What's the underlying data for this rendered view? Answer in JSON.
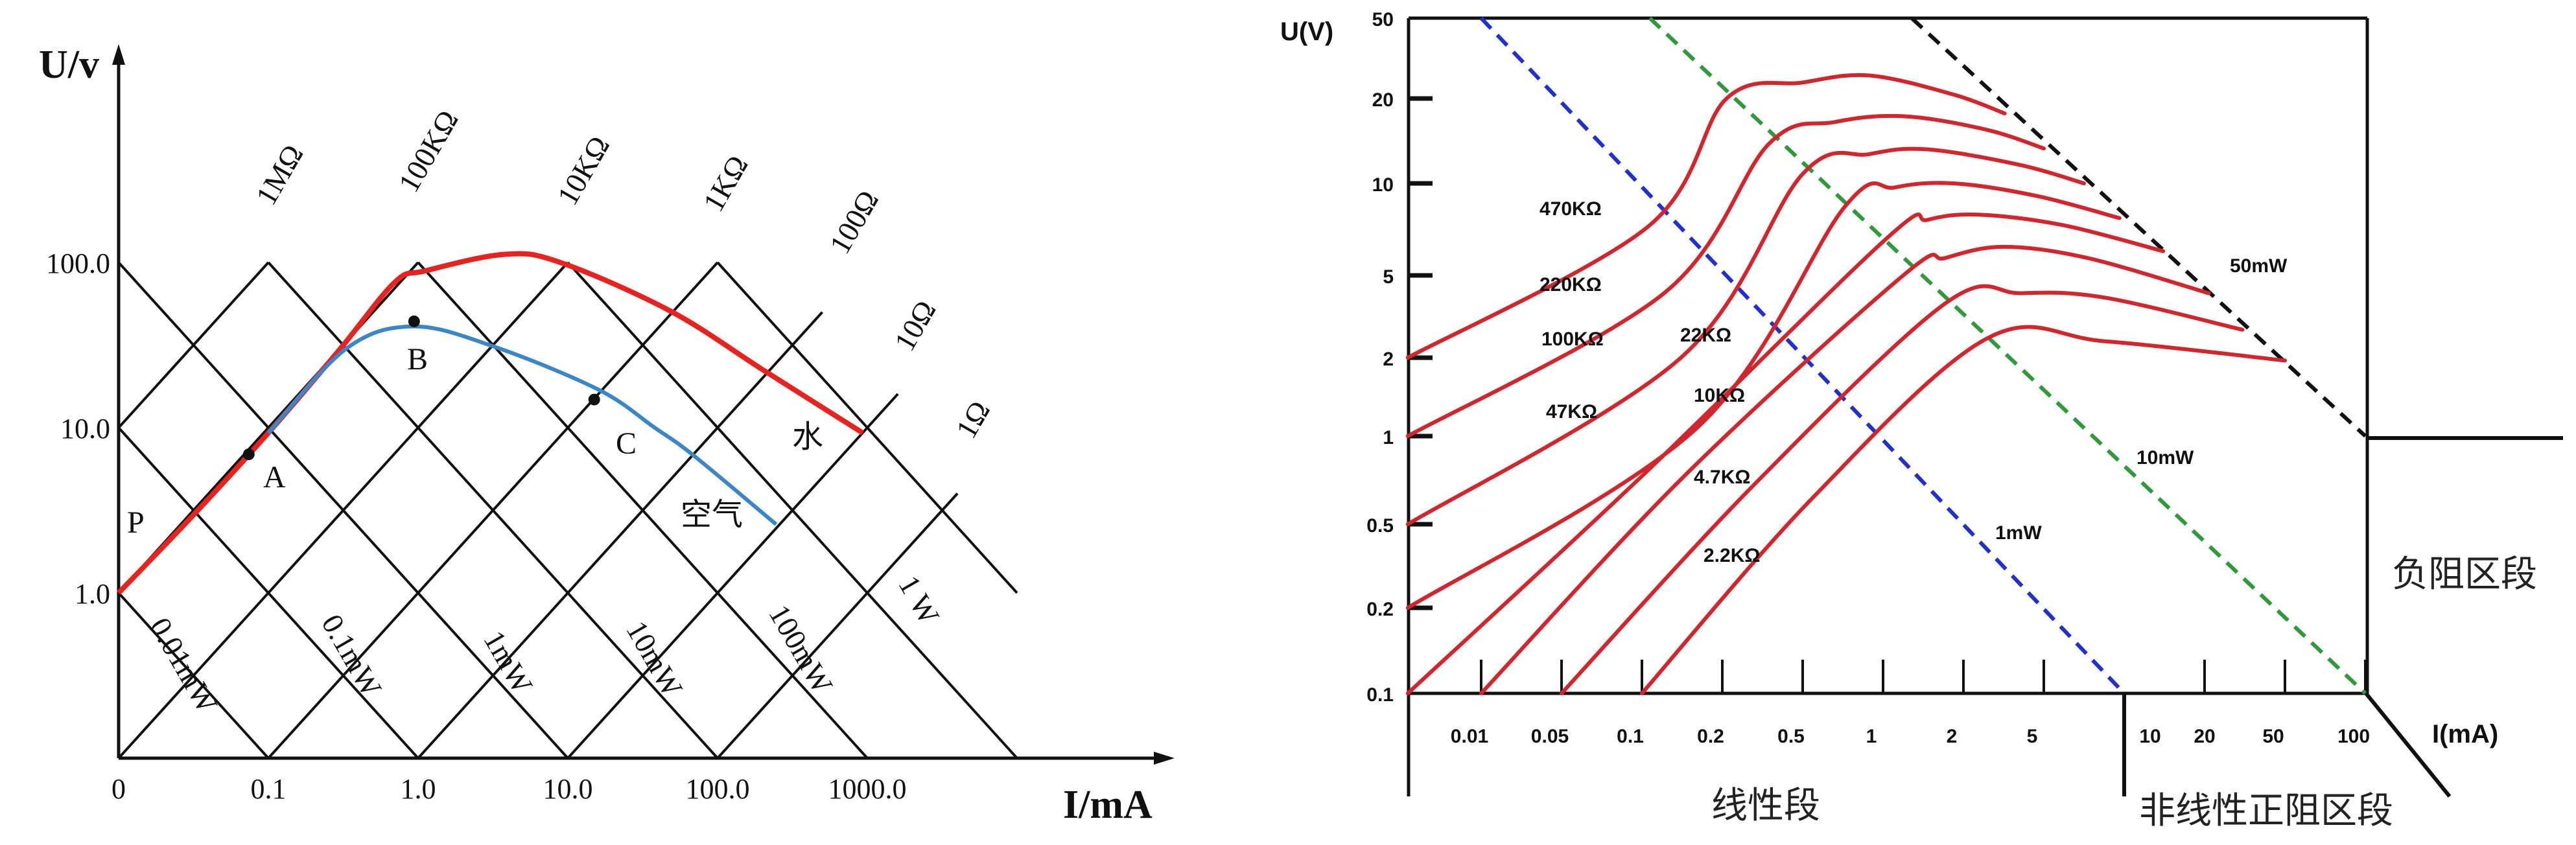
{
  "chart_data": [
    {
      "type": "line",
      "xlabel": "I/mA",
      "ylabel": "U/v",
      "xscale": "log",
      "yscale": "log",
      "x_ticks": [
        {
          "label": "0",
          "value": 0.01
        },
        {
          "label": "0.1",
          "value": 0.1
        },
        {
          "label": "1.0",
          "value": 1
        },
        {
          "label": "10.0",
          "value": 10
        },
        {
          "label": "100.0",
          "value": 100
        },
        {
          "label": "1000.0",
          "value": 1000
        }
      ],
      "y_ticks": [
        {
          "label": "1.0",
          "value": 1
        },
        {
          "label": "10.0",
          "value": 10
        },
        {
          "label": "100.0",
          "value": 100
        }
      ],
      "resistance_lines": [
        {
          "label": "1MΩ",
          "points": [
            [
              0.01,
              10
            ],
            [
              0.1,
              100
            ]
          ]
        },
        {
          "label": "100KΩ",
          "points": [
            [
              0.01,
              1
            ],
            [
              1,
              100
            ]
          ]
        },
        {
          "label": "10KΩ",
          "points": [
            [
              0.01,
              0.1
            ],
            [
              10,
              100
            ]
          ]
        },
        {
          "label": "1KΩ",
          "points": [
            [
              0.1,
              0.1
            ],
            [
              100,
              100
            ]
          ]
        },
        {
          "label": "100Ω",
          "points": [
            [
              1,
              0.1
            ],
            [
              500,
              50
            ]
          ]
        },
        {
          "label": "10Ω",
          "points": [
            [
              10,
              0.1
            ],
            [
              1600,
              16
            ]
          ]
        },
        {
          "label": "1Ω",
          "points": [
            [
              100,
              0.1
            ],
            [
              4000,
              4
            ]
          ]
        }
      ],
      "power_lines": [
        {
          "label": "0.01mW",
          "points": [
            [
              0.01,
              1
            ],
            [
              0.1,
              0.1
            ]
          ]
        },
        {
          "label": "0.1mW",
          "points": [
            [
              0.01,
              10
            ],
            [
              1,
              0.1
            ]
          ]
        },
        {
          "label": "1mW",
          "points": [
            [
              0.01,
              100
            ],
            [
              10,
              0.1
            ]
          ]
        },
        {
          "label": "10mW",
          "points": [
            [
              0.1,
              100
            ],
            [
              100,
              0.1
            ]
          ]
        },
        {
          "label": "100mW",
          "points": [
            [
              1,
              100
            ],
            [
              1000,
              0.1
            ]
          ]
        },
        {
          "label": "1 W",
          "points": [
            [
              10,
              100
            ],
            [
              10000,
              0.1
            ]
          ]
        },
        {
          "label": "",
          "points": [
            [
              100,
              100
            ],
            [
              10000,
              1
            ]
          ]
        }
      ],
      "series": [
        {
          "name": "水",
          "color": "#e8231f",
          "points": [
            [
              0.01,
              1.0
            ],
            [
              0.032,
              3.0
            ],
            [
              0.1,
              9.3
            ],
            [
              0.3,
              29.8
            ],
            [
              0.7,
              76
            ],
            [
              1.12,
              89
            ],
            [
              3.8,
              112
            ],
            [
              8.9,
              100
            ],
            [
              48,
              51
            ],
            [
              207,
              22
            ],
            [
              930,
              9.3
            ]
          ]
        },
        {
          "name": "空气",
          "color": "#3a86c8",
          "points": [
            [
              0.1,
              9.3
            ],
            [
              0.33,
              30
            ],
            [
              0.93,
              41
            ],
            [
              3.2,
              31
            ],
            [
              16,
              17
            ],
            [
              38,
              10
            ],
            [
              69,
              6.8
            ],
            [
              246,
              2.6
            ]
          ]
        }
      ],
      "points": [
        {
          "label": "P",
          "x": 0.01,
          "y": 1.0,
          "marker": false
        },
        {
          "label": "A",
          "x": 0.074,
          "y": 6.9,
          "marker": true
        },
        {
          "label": "B",
          "x": 0.94,
          "y": 44,
          "marker": true
        },
        {
          "label": "C",
          "x": 15,
          "y": 14.8,
          "marker": true
        }
      ]
    },
    {
      "type": "line",
      "xlabel": "I(mA)",
      "ylabel": "U(V)",
      "yscale": "log",
      "x_ticks": [
        "0.01",
        "0.05",
        "0.1",
        "0.2",
        "0.5",
        "1",
        "2",
        "5",
        "10",
        "20",
        "50",
        "100"
      ],
      "x_tick_values": [
        0.01,
        0.05,
        0.1,
        0.2,
        0.5,
        1,
        2,
        5,
        10,
        20,
        50,
        100
      ],
      "y_ticks": [
        "0.1",
        "0.2",
        "0.5",
        "1",
        "2",
        "5",
        "10",
        "20",
        "50"
      ],
      "y_tick_values": [
        0.1,
        0.2,
        0.5,
        1,
        2,
        5,
        10,
        20,
        50
      ],
      "ylim": [
        0.1,
        50
      ],
      "series_color": "#d2262c",
      "series": [
        {
          "name": "470KΩ",
          "points": [
            [
              0.0023,
              2.0
            ],
            [
              0.105,
              7.2
            ],
            [
              0.21,
              20
            ],
            [
              0.5,
              24
            ],
            [
              0.89,
              26
            ],
            [
              1.84,
              20.9
            ],
            [
              3.2,
              17.7
            ]
          ]
        },
        {
          "name": "220KΩ",
          "points": [
            [
              0.0023,
              1.0
            ],
            [
              0.121,
              4.1
            ],
            [
              0.34,
              13.8
            ],
            [
              0.66,
              16.5
            ],
            [
              1.19,
              17.3
            ],
            [
              2.6,
              15.5
            ],
            [
              5,
              13.3
            ]
          ]
        },
        {
          "name": "100KΩ",
          "points": [
            [
              0.0023,
              0.5
            ],
            [
              0.14,
              2
            ],
            [
              0.5,
              10.8
            ],
            [
              0.89,
              12.7
            ],
            [
              1.47,
              13.2
            ],
            [
              3.86,
              11.6
            ],
            [
              7.07,
              10
            ]
          ]
        },
        {
          "name": "47KΩ",
          "points": [
            [
              0.0023,
              0.2
            ],
            [
              0.16,
              1.07
            ],
            [
              0.72,
              8.4
            ],
            [
              1.11,
              9.7
            ],
            [
              1.84,
              10
            ],
            [
              4.6,
              9.1
            ],
            [
              9.6,
              7.7
            ]
          ]
        },
        {
          "name": "22KΩ",
          "points": [
            [
              0.0023,
              0.1
            ],
            [
              0.1,
              0.73
            ],
            [
              1.03,
              6.6
            ],
            [
              1.47,
              7.6
            ],
            [
              2.38,
              7.9
            ],
            [
              5.9,
              7.3
            ],
            [
              14,
              6.0
            ]
          ]
        },
        {
          "name": "10KΩ",
          "points": [
            [
              0.01,
              0.1
            ],
            [
              0.144,
              0.73
            ],
            [
              1.19,
              5
            ],
            [
              1.71,
              5.7
            ],
            [
              3.16,
              6.2
            ],
            [
              7.3,
              5.7
            ],
            [
              21,
              4.1
            ]
          ]
        },
        {
          "name": "4.7KΩ",
          "points": [
            [
              0.05,
              0.1
            ],
            [
              0.28,
              0.67
            ],
            [
              1.71,
              3.66
            ],
            [
              3.86,
              4.1
            ],
            [
              8.5,
              3.9
            ],
            [
              30.8,
              2.73
            ]
          ]
        },
        {
          "name": "2.2KΩ",
          "points": [
            [
              0.1,
              0.1
            ],
            [
              0.54,
              0.61
            ],
            [
              2.6,
              2.47
            ],
            [
              8.5,
              2.4
            ],
            [
              50,
              1.95
            ]
          ]
        }
      ],
      "power_lines": [
        {
          "label": "1mW",
          "color": "#1f2fd0",
          "style": "dashed",
          "points": [
            [
              0.01,
              50
            ],
            [
              10,
              0.1
            ]
          ]
        },
        {
          "label": "10mW",
          "color": "#2e9a3a",
          "style": "dashed",
          "points": [
            [
              0.107,
              50
            ],
            [
              100,
              0.1
            ]
          ]
        },
        {
          "label": "50mW",
          "color": "#111111",
          "style": "dashed",
          "points": [
            [
              1.28,
              50
            ],
            [
              100,
              1
            ]
          ]
        }
      ],
      "regions": [
        "线性段",
        "非线性正阻区段",
        "负阻区段"
      ]
    }
  ]
}
